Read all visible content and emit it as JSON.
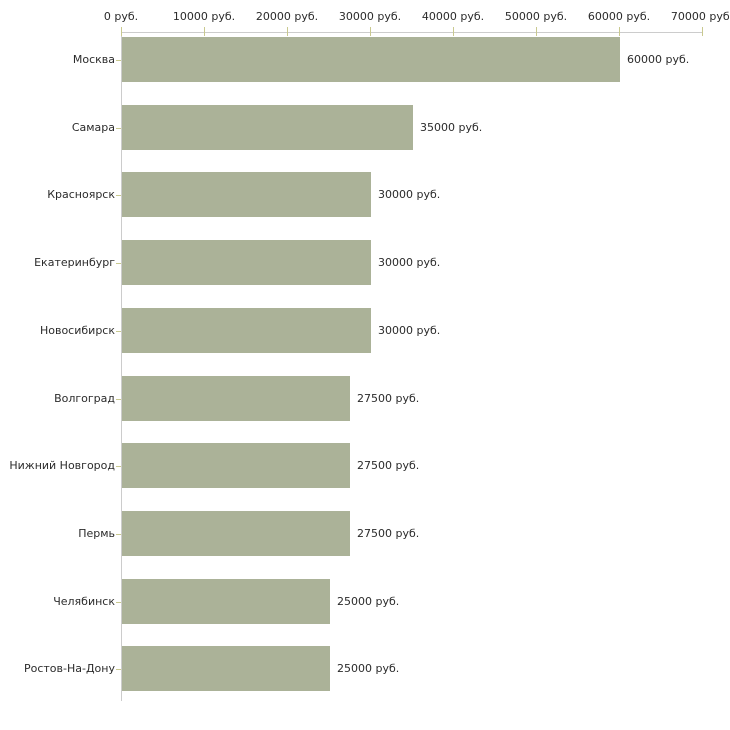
{
  "chart_data": {
    "type": "bar",
    "orientation": "horizontal",
    "title": "",
    "categories": [
      "Москва",
      "Самара",
      "Красноярск",
      "Екатеринбург",
      "Новосибирск",
      "Волгоград",
      "Нижний Новгород",
      "Пермь",
      "Челябинск",
      "Ростов-На-Дону"
    ],
    "values": [
      60000,
      35000,
      30000,
      30000,
      30000,
      27500,
      27500,
      27500,
      25000,
      25000
    ],
    "value_labels": [
      "60000 руб.",
      "35000 руб.",
      "30000 руб.",
      "30000 руб.",
      "30000 руб.",
      "27500 руб.",
      "27500 руб.",
      "27500 руб.",
      "25000 руб.",
      "25000 руб."
    ],
    "x_axis": {
      "position": "top",
      "min": 0,
      "max": 70000,
      "tick_values": [
        0,
        10000,
        20000,
        30000,
        40000,
        50000,
        60000,
        70000
      ],
      "tick_labels": [
        "0 руб.",
        "10000 руб.",
        "20000 руб.",
        "30000 руб.",
        "40000 руб.",
        "50000 руб.",
        "60000 руб.",
        "70000 руб."
      ]
    },
    "grid": false,
    "legend": false,
    "colors": {
      "bar": "#abb298",
      "axis_line": "#cccccc",
      "tick": "#c9c98f",
      "text": "#2b2b2b",
      "background": "#ffffff"
    }
  }
}
